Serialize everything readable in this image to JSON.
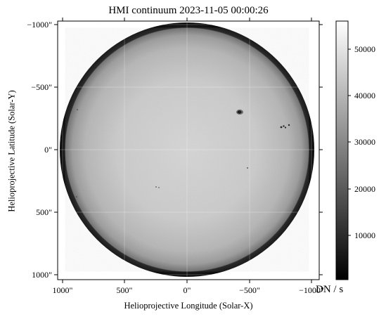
{
  "figure": {
    "title": "HMI continuum 2023-11-05 00:00:26",
    "x_axis_label": "Helioprojective Longitude (Solar-X)",
    "y_axis_label": "Helioprojective Latitude (Solar-Y)",
    "colorbar_label": "DN / s"
  },
  "x_ticks": [
    "1000\"",
    "500\"",
    "0\"",
    "−500\"",
    "−1000\""
  ],
  "y_ticks": [
    "−1000\"",
    "−500\"",
    "0\"",
    "500\"",
    "1000\""
  ],
  "colorbar_ticks": [
    "10000",
    "20000",
    "30000",
    "40000",
    "50000"
  ],
  "image": {
    "subject": "solar disk in white light with limb darkening and a few small sunspots",
    "colormap": "gray",
    "disk_color": "#c8c8c8",
    "limb_color": "#0d0d0d",
    "grid": true
  }
}
